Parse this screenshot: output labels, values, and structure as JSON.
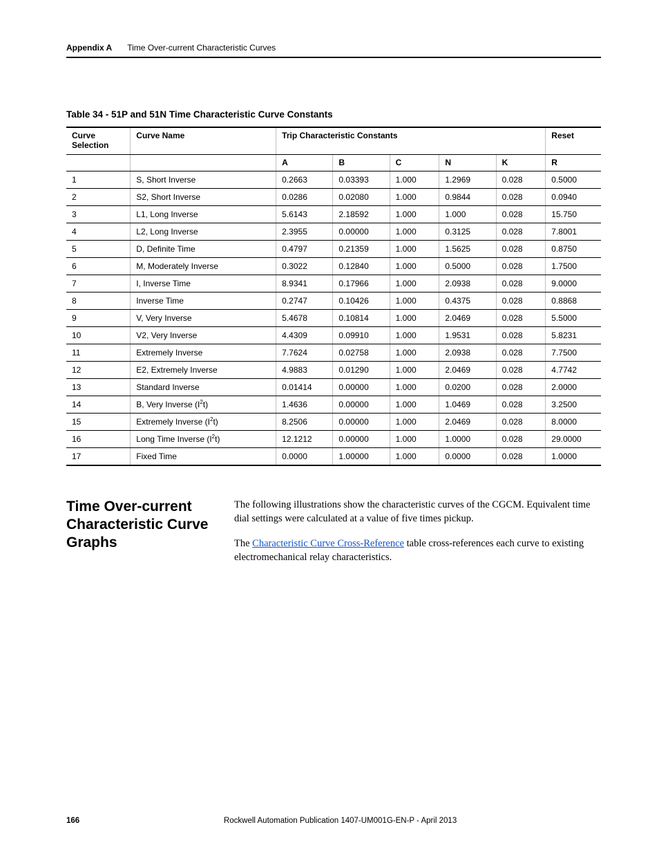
{
  "header": {
    "appendix": "Appendix A",
    "title": "Time Over-current Characteristic Curves"
  },
  "table": {
    "caption": "Table 34 - 51P and 51N Time Characteristic Curve Constants",
    "columns": {
      "curve_selection": "Curve\nSelection",
      "curve_name": "Curve Name",
      "trip_group": "Trip Characteristic Constants",
      "reset": "Reset",
      "sub": {
        "A": "A",
        "B": "B",
        "C": "C",
        "N": "N",
        "K": "K",
        "R": "R"
      }
    },
    "rows": [
      {
        "sel": "1",
        "name": "S, Short Inverse",
        "A": "0.2663",
        "B": "0.03393",
        "C": "1.000",
        "N": "1.2969",
        "K": "0.028",
        "R": "0.5000"
      },
      {
        "sel": "2",
        "name": "S2, Short Inverse",
        "A": "0.0286",
        "B": "0.02080",
        "C": "1.000",
        "N": "0.9844",
        "K": "0.028",
        "R": "0.0940"
      },
      {
        "sel": "3",
        "name": "L1, Long Inverse",
        "A": "5.6143",
        "B": "2.18592",
        "C": "1.000",
        "N": "1.000",
        "K": "0.028",
        "R": "15.750"
      },
      {
        "sel": "4",
        "name": "L2, Long Inverse",
        "A": "2.3955",
        "B": "0.00000",
        "C": "1.000",
        "N": "0.3125",
        "K": "0.028",
        "R": "7.8001"
      },
      {
        "sel": "5",
        "name": "D, Definite Time",
        "A": "0.4797",
        "B": "0.21359",
        "C": "1.000",
        "N": "1.5625",
        "K": "0.028",
        "R": "0.8750"
      },
      {
        "sel": "6",
        "name": "M, Moderately Inverse",
        "A": "0.3022",
        "B": "0.12840",
        "C": "1.000",
        "N": "0.5000",
        "K": "0.028",
        "R": "1.7500"
      },
      {
        "sel": "7",
        "name": "I, Inverse Time",
        "A": "8.9341",
        "B": "0.17966",
        "C": "1.000",
        "N": "2.0938",
        "K": "0.028",
        "R": "9.0000"
      },
      {
        "sel": "8",
        "name": "Inverse Time",
        "A": "0.2747",
        "B": "0.10426",
        "C": "1.000",
        "N": "0.4375",
        "K": "0.028",
        "R": "0.8868"
      },
      {
        "sel": "9",
        "name": "V, Very Inverse",
        "A": "5.4678",
        "B": "0.10814",
        "C": "1.000",
        "N": "2.0469",
        "K": "0.028",
        "R": "5.5000"
      },
      {
        "sel": "10",
        "name": "V2, Very Inverse",
        "A": "4.4309",
        "B": "0.09910",
        "C": "1.000",
        "N": "1.9531",
        "K": "0.028",
        "R": "5.8231"
      },
      {
        "sel": "11",
        "name": "Extremely Inverse",
        "A": "7.7624",
        "B": "0.02758",
        "C": "1.000",
        "N": "2.0938",
        "K": "0.028",
        "R": "7.7500"
      },
      {
        "sel": "12",
        "name": "E2, Extremely Inverse",
        "A": "4.9883",
        "B": "0.01290",
        "C": "1.000",
        "N": "2.0469",
        "K": "0.028",
        "R": "4.7742"
      },
      {
        "sel": "13",
        "name": "Standard Inverse",
        "A": "0.01414",
        "B": "0.00000",
        "C": "1.000",
        "N": "0.0200",
        "K": "0.028",
        "R": "2.0000"
      },
      {
        "sel": "14",
        "name_i2t": "B, Very Inverse (I2t)",
        "A": "1.4636",
        "B": "0.00000",
        "C": "1.000",
        "N": "1.0469",
        "K": "0.028",
        "R": "3.2500"
      },
      {
        "sel": "15",
        "name_i2t": "Extremely Inverse (I2t)",
        "A": "8.2506",
        "B": "0.00000",
        "C": "1.000",
        "N": "2.0469",
        "K": "0.028",
        "R": "8.0000"
      },
      {
        "sel": "16",
        "name_i2t": "Long Time Inverse (I2t)",
        "A": "12.1212",
        "B": "0.00000",
        "C": "1.000",
        "N": "1.0000",
        "K": "0.028",
        "R": "29.0000"
      },
      {
        "sel": "17",
        "name": "Fixed Time",
        "A": "0.0000",
        "B": "1.00000",
        "C": "1.000",
        "N": "0.0000",
        "K": "0.028",
        "R": "1.0000"
      }
    ]
  },
  "section": {
    "heading": "Time Over-current Characteristic Curve Graphs",
    "para1": "The following illustrations show the characteristic curves of the CGCM. Equivalent time dial settings were calculated at a value of five times pickup.",
    "para2a": "The ",
    "link": "Characteristic Curve Cross-Reference",
    "para2b": " table cross-references each curve to existing electromechanical relay characteristics."
  },
  "footer": {
    "page": "166",
    "pub": "Rockwell Automation Publication 1407-UM001G-EN-P - April 2013"
  }
}
